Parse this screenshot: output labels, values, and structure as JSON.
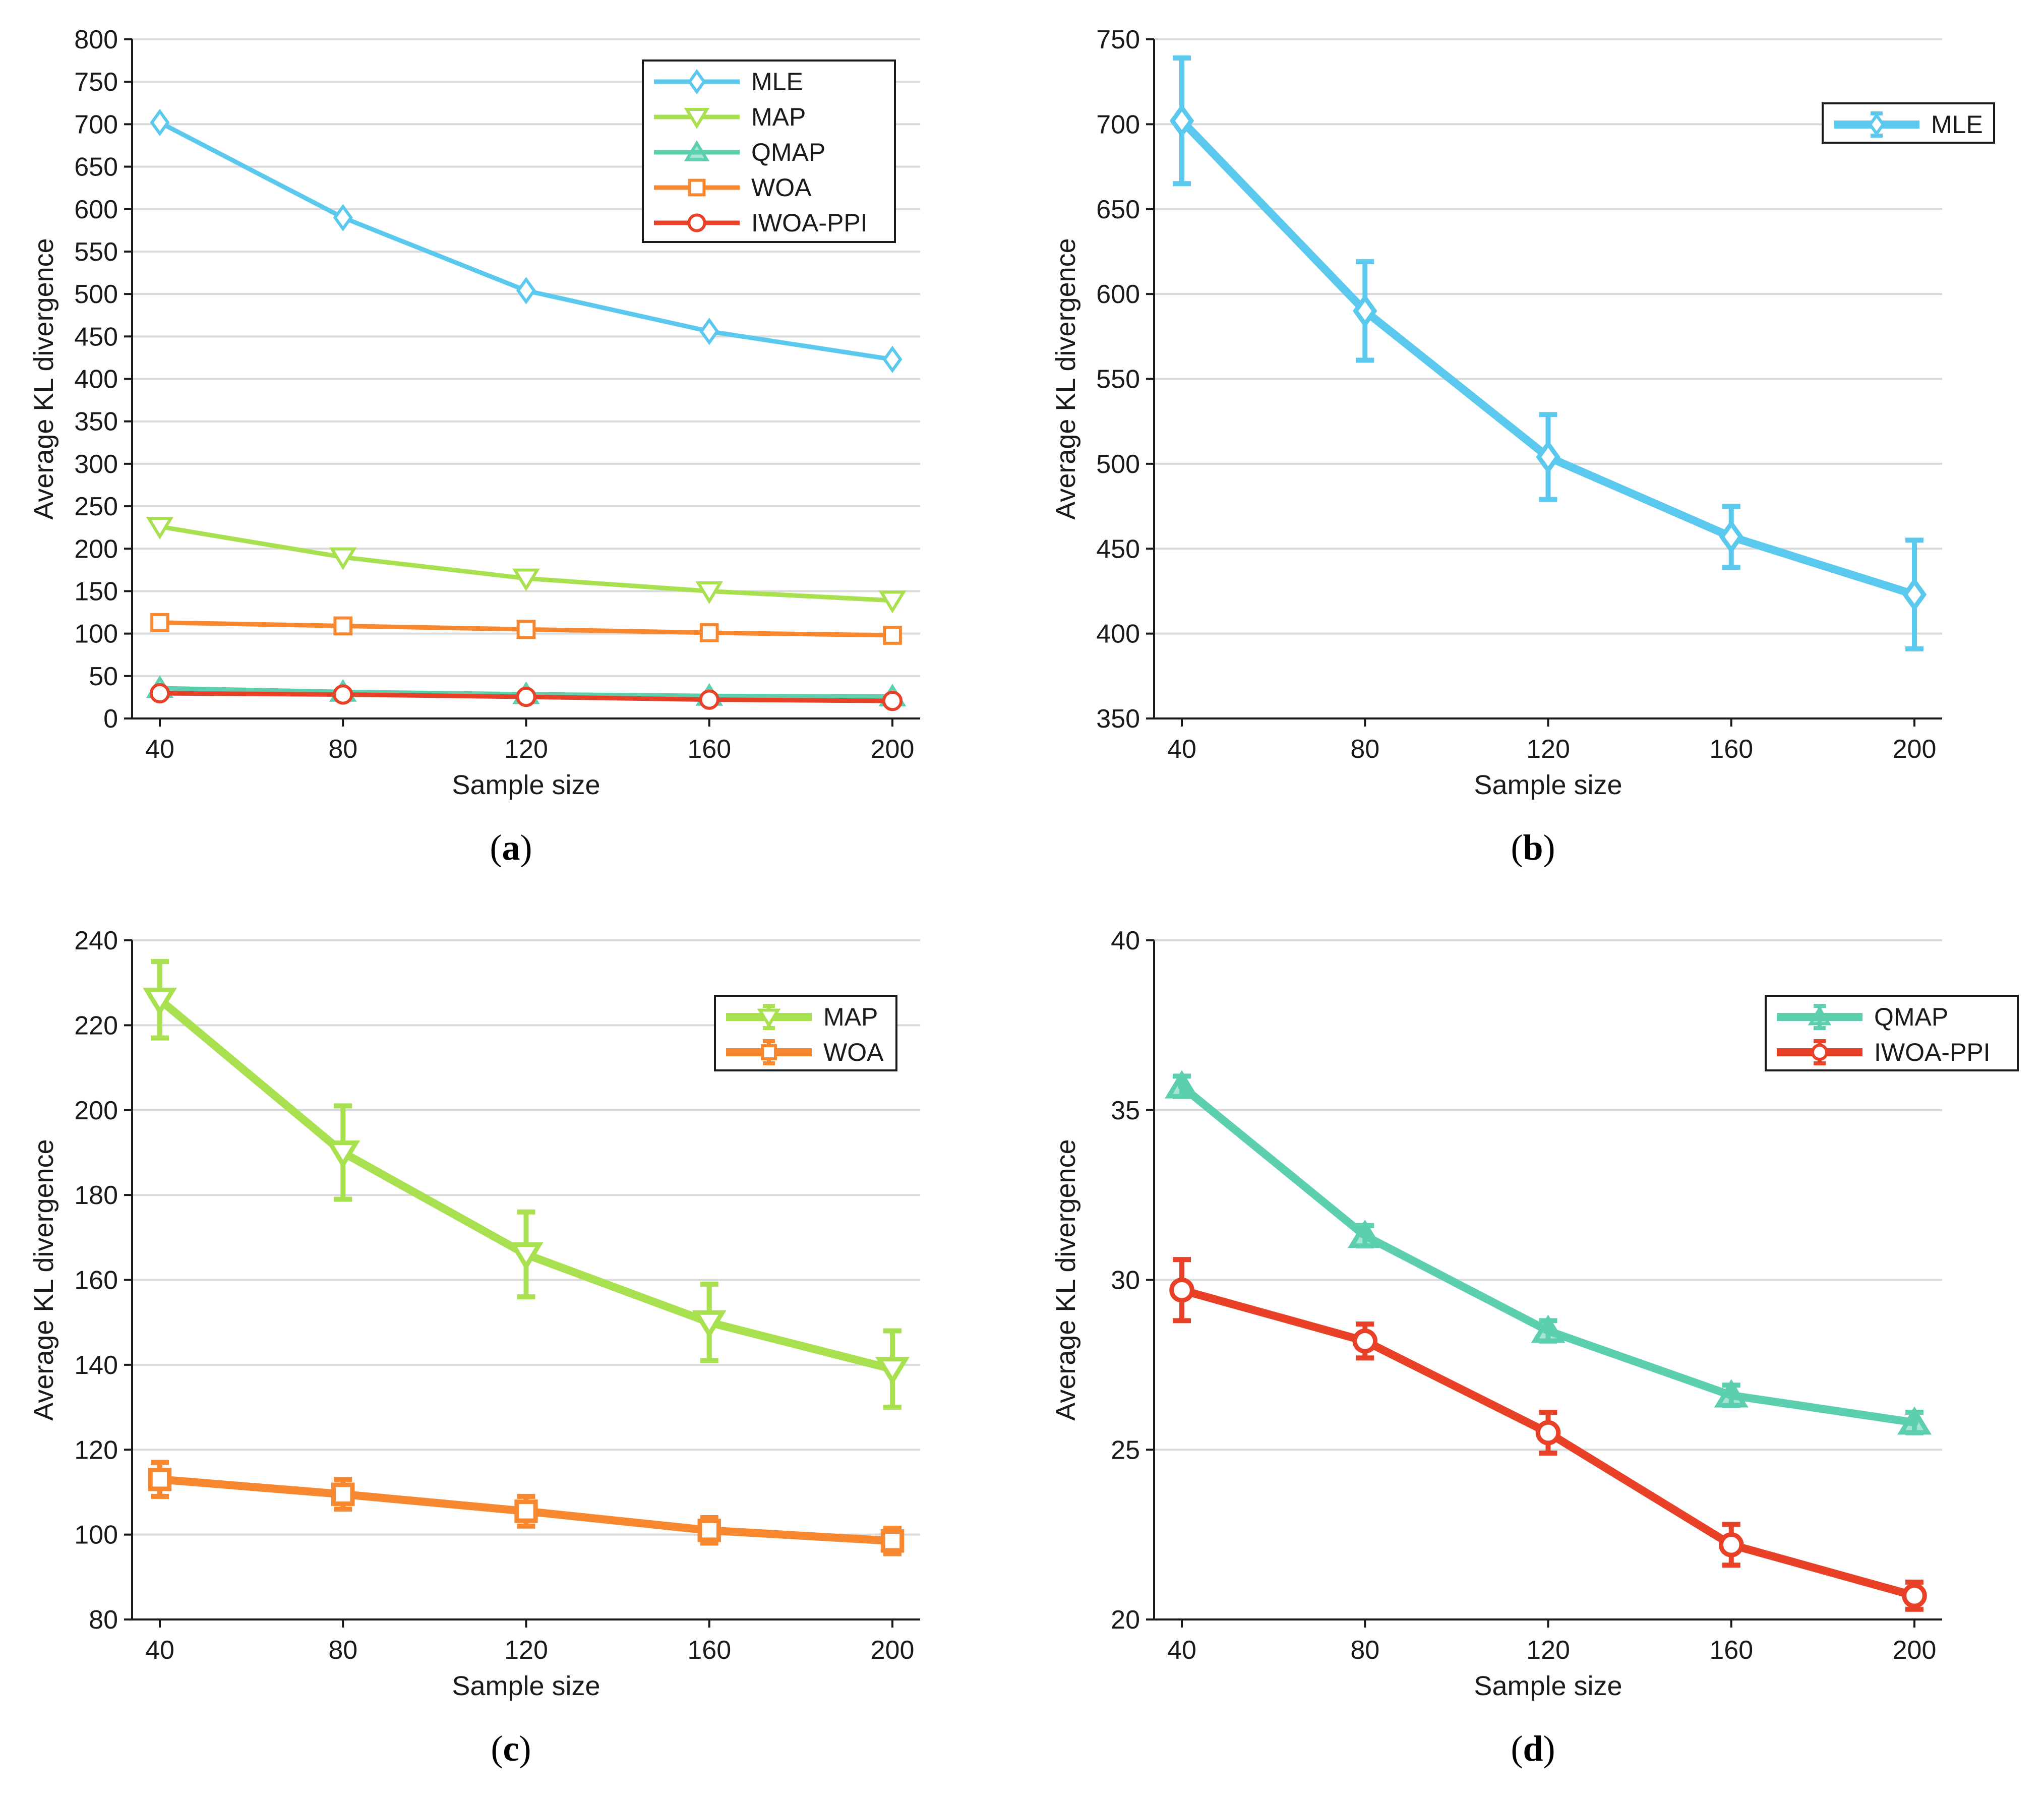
{
  "colors": {
    "MLE": "#5BC8EE",
    "MAP": "#A8E04F",
    "QMAP": "#5CCFAE",
    "WOA": "#F7882F",
    "IWOA-PPI": "#E84127",
    "grid": "#d9d9d9",
    "axis": "#1a1a1a"
  },
  "chart_data": [
    {
      "id": "a",
      "type": "line",
      "caption_label": "a",
      "xlabel": "Sample size",
      "ylabel": "Average KL divergence",
      "x": [
        40,
        80,
        120,
        160,
        200
      ],
      "xticks": [
        "40",
        "80",
        "120",
        "160",
        "200"
      ],
      "ylim": [
        0,
        800
      ],
      "yticks": [
        "0",
        "50",
        "100",
        "150",
        "200",
        "250",
        "300",
        "350",
        "400",
        "450",
        "500",
        "550",
        "600",
        "650",
        "700",
        "750",
        "800"
      ],
      "grid": true,
      "legend_position": "top-right",
      "error_bars": false,
      "series": [
        {
          "name": "MLE",
          "marker": "diamond",
          "values": [
            702,
            590,
            504,
            456,
            423
          ]
        },
        {
          "name": "MAP",
          "marker": "triangle-down",
          "values": [
            226,
            190,
            165,
            150,
            139
          ]
        },
        {
          "name": "QMAP",
          "marker": "triangle-up",
          "values": [
            35.7,
            31.3,
            28.5,
            26.6,
            25.8
          ]
        },
        {
          "name": "WOA",
          "marker": "square",
          "values": [
            113,
            109,
            105,
            101,
            98
          ]
        },
        {
          "name": "IWOA-PPI",
          "marker": "circle",
          "values": [
            29.7,
            28.2,
            25.5,
            22.2,
            20.7
          ]
        }
      ]
    },
    {
      "id": "b",
      "type": "line",
      "caption_label": "b",
      "xlabel": "Sample size",
      "ylabel": "Average KL divergence",
      "x": [
        40,
        80,
        120,
        160,
        200
      ],
      "xticks": [
        "40",
        "80",
        "120",
        "160",
        "200"
      ],
      "ylim": [
        350,
        750
      ],
      "yticks": [
        "350",
        "400",
        "450",
        "500",
        "550",
        "600",
        "650",
        "700",
        "750"
      ],
      "grid": true,
      "legend_position": "top-right",
      "error_bars": true,
      "series": [
        {
          "name": "MLE",
          "marker": "diamond",
          "values": [
            702,
            590,
            504,
            457,
            423
          ],
          "errors": [
            37,
            29,
            25,
            18,
            32
          ]
        }
      ]
    },
    {
      "id": "c",
      "type": "line",
      "caption_label": "c",
      "xlabel": "Sample size",
      "ylabel": "Average KL divergence",
      "x": [
        40,
        80,
        120,
        160,
        200
      ],
      "xticks": [
        "40",
        "80",
        "120",
        "160",
        "200"
      ],
      "ylim": [
        80,
        240
      ],
      "yticks": [
        "80",
        "100",
        "120",
        "140",
        "160",
        "180",
        "200",
        "220",
        "240"
      ],
      "grid": true,
      "legend_position": "top-right",
      "error_bars": true,
      "series": [
        {
          "name": "MAP",
          "marker": "triangle-down",
          "values": [
            226,
            190,
            166,
            150,
            139
          ],
          "errors": [
            9,
            11,
            10,
            9,
            9
          ]
        },
        {
          "name": "WOA",
          "marker": "square",
          "values": [
            113,
            109.5,
            105.5,
            101,
            98.5
          ],
          "errors": [
            4,
            3.5,
            3.5,
            3,
            3
          ]
        }
      ]
    },
    {
      "id": "d",
      "type": "line",
      "caption_label": "d",
      "xlabel": "Sample size",
      "ylabel": "Average KL divergence",
      "x": [
        40,
        80,
        120,
        160,
        200
      ],
      "xticks": [
        "40",
        "80",
        "120",
        "160",
        "200"
      ],
      "ylim": [
        20,
        40
      ],
      "yticks": [
        "20",
        "25",
        "30",
        "35",
        "40"
      ],
      "grid": true,
      "legend_position": "top-right",
      "error_bars": true,
      "series": [
        {
          "name": "QMAP",
          "marker": "triangle-up",
          "values": [
            35.7,
            31.3,
            28.5,
            26.6,
            25.8
          ],
          "errors": [
            0.3,
            0.3,
            0.3,
            0.3,
            0.3
          ]
        },
        {
          "name": "IWOA-PPI",
          "marker": "circle",
          "values": [
            29.7,
            28.2,
            25.5,
            22.2,
            20.7
          ],
          "errors": [
            0.9,
            0.5,
            0.6,
            0.6,
            0.4
          ]
        }
      ]
    }
  ]
}
